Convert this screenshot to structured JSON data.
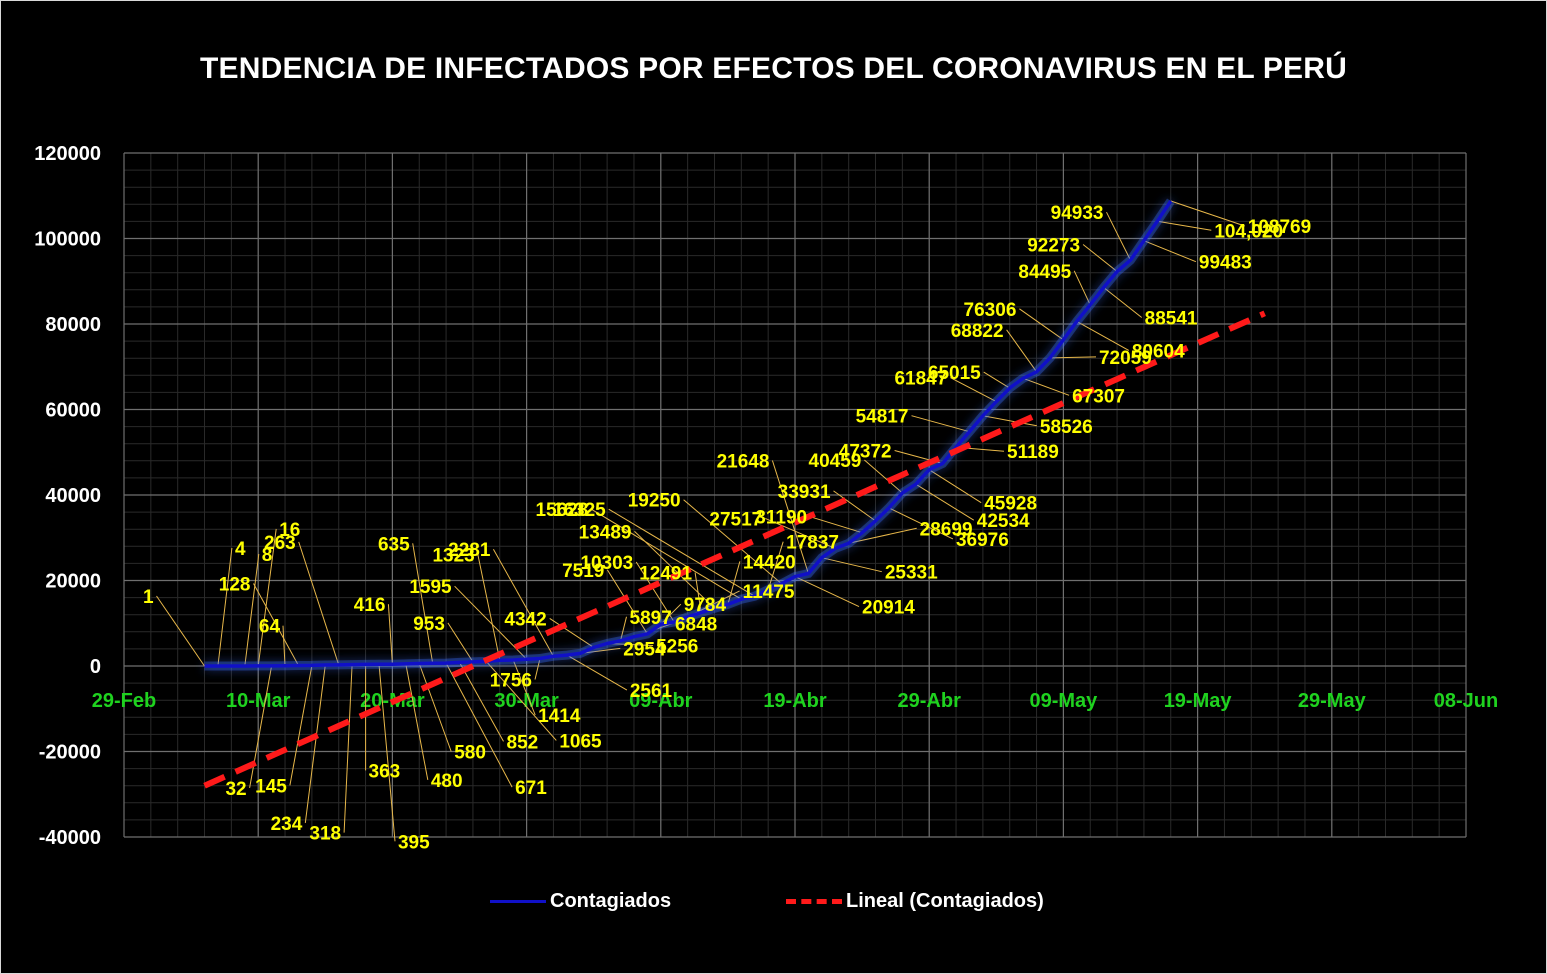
{
  "chart_data": {
    "type": "line",
    "title": "TENDENCIA DE INFECTADOS POR EFECTOS DEL CORONAVIRUS EN EL PERÚ",
    "xlabel": "",
    "ylabel": "",
    "x_axis": {
      "type": "date",
      "min": "2020-02-29",
      "max": "2020-06-08",
      "tick_labels": [
        "29-Feb",
        "10-Mar",
        "20-Mar",
        "30-Mar",
        "09-Abr",
        "19-Abr",
        "29-Abr",
        "09-May",
        "19-May",
        "29-May",
        "08-Jun"
      ]
    },
    "y_axis": {
      "min": -40000,
      "max": 120000,
      "tick_labels": [
        "-40000",
        "-20000",
        "0",
        "20000",
        "40000",
        "60000",
        "80000",
        "100000",
        "120000"
      ]
    },
    "grid": true,
    "legend_position": "bottom",
    "colors": {
      "background": "#000000",
      "grid": "#6f6f6f",
      "axis_text": "#ffffff",
      "date_text": "#1fd21f",
      "series": "#1010c8",
      "trend": "#ff1a1a",
      "labels": "#ffff00",
      "leader": "#e8b84a"
    },
    "series": [
      {
        "name": "Contagiados",
        "points": [
          [
            "2020-03-06",
            1
          ],
          [
            "2020-03-07",
            4
          ],
          [
            "2020-03-09",
            8
          ],
          [
            "2020-03-10",
            16
          ],
          [
            "2020-03-11",
            32
          ],
          [
            "2020-03-12",
            64
          ],
          [
            "2020-03-13",
            128
          ],
          [
            "2020-03-14",
            145
          ],
          [
            "2020-03-15",
            234
          ],
          [
            "2020-03-16",
            263
          ],
          [
            "2020-03-17",
            318
          ],
          [
            "2020-03-18",
            363
          ],
          [
            "2020-03-19",
            395
          ],
          [
            "2020-03-20",
            416
          ],
          [
            "2020-03-21",
            480
          ],
          [
            "2020-03-22",
            580
          ],
          [
            "2020-03-23",
            635
          ],
          [
            "2020-03-24",
            671
          ],
          [
            "2020-03-25",
            852
          ],
          [
            "2020-03-26",
            953
          ],
          [
            "2020-03-27",
            1065
          ],
          [
            "2020-03-28",
            1323
          ],
          [
            "2020-03-29",
            1414
          ],
          [
            "2020-03-30",
            1595
          ],
          [
            "2020-03-31",
            1756
          ],
          [
            "2020-04-01",
            2281
          ],
          [
            "2020-04-02",
            2561
          ],
          [
            "2020-04-03",
            2954
          ],
          [
            "2020-04-04",
            4342
          ],
          [
            "2020-04-05",
            5256
          ],
          [
            "2020-04-06",
            5897
          ],
          [
            "2020-04-07",
            6848
          ],
          [
            "2020-04-08",
            7519
          ],
          [
            "2020-04-09",
            9784
          ],
          [
            "2020-04-10",
            10303
          ],
          [
            "2020-04-11",
            11475
          ],
          [
            "2020-04-12",
            12491
          ],
          [
            "2020-04-13",
            13489
          ],
          [
            "2020-04-14",
            14420
          ],
          [
            "2020-04-15",
            15628
          ],
          [
            "2020-04-16",
            16325
          ],
          [
            "2020-04-17",
            17837
          ],
          [
            "2020-04-18",
            19250
          ],
          [
            "2020-04-19",
            20914
          ],
          [
            "2020-04-20",
            21648
          ],
          [
            "2020-04-21",
            25331
          ],
          [
            "2020-04-22",
            27517
          ],
          [
            "2020-04-23",
            28699
          ],
          [
            "2020-04-24",
            31190
          ],
          [
            "2020-04-25",
            33931
          ],
          [
            "2020-04-26",
            36976
          ],
          [
            "2020-04-27",
            40459
          ],
          [
            "2020-04-28",
            42534
          ],
          [
            "2020-04-29",
            45928
          ],
          [
            "2020-04-30",
            47372
          ],
          [
            "2020-05-01",
            51189
          ],
          [
            "2020-05-02",
            54817
          ],
          [
            "2020-05-03",
            58526
          ],
          [
            "2020-05-04",
            61847
          ],
          [
            "2020-05-05",
            65015
          ],
          [
            "2020-05-06",
            67307
          ],
          [
            "2020-05-07",
            68822
          ],
          [
            "2020-05-08",
            72059
          ],
          [
            "2020-05-09",
            76306
          ],
          [
            "2020-05-10",
            80604
          ],
          [
            "2020-05-11",
            84495
          ],
          [
            "2020-05-12",
            88541
          ],
          [
            "2020-05-13",
            92273
          ],
          [
            "2020-05-14",
            94933
          ],
          [
            "2020-05-15",
            99483
          ],
          [
            "2020-05-16",
            104020
          ],
          [
            "2020-05-17",
            108769
          ]
        ]
      }
    ],
    "trendline": {
      "name": "Lineal (Contagiados)",
      "type": "linear",
      "start": [
        "2020-03-06",
        -28000
      ],
      "end": [
        "2020-05-24",
        82500
      ]
    },
    "data_labels": [
      {
        "text": "1",
        "i": 0
      },
      {
        "text": "4",
        "i": 1
      },
      {
        "text": "8",
        "i": 2
      },
      {
        "text": "16",
        "i": 3
      },
      {
        "text": "32",
        "i": 4
      },
      {
        "text": "64",
        "i": 5
      },
      {
        "text": "128",
        "i": 6
      },
      {
        "text": "145",
        "i": 7
      },
      {
        "text": "234",
        "i": 8
      },
      {
        "text": "263",
        "i": 9
      },
      {
        "text": "318",
        "i": 10
      },
      {
        "text": "363",
        "i": 11
      },
      {
        "text": "395",
        "i": 12
      },
      {
        "text": "416",
        "i": 13
      },
      {
        "text": "480",
        "i": 14
      },
      {
        "text": "580",
        "i": 15
      },
      {
        "text": "635",
        "i": 16
      },
      {
        "text": "671",
        "i": 17
      },
      {
        "text": "852",
        "i": 18
      },
      {
        "text": "953",
        "i": 19
      },
      {
        "text": "1065",
        "i": 20
      },
      {
        "text": "1323",
        "i": 21
      },
      {
        "text": "1414",
        "i": 22
      },
      {
        "text": "1595",
        "i": 23
      },
      {
        "text": "1756",
        "i": 24
      },
      {
        "text": "2281",
        "i": 25
      },
      {
        "text": "2561",
        "i": 26
      },
      {
        "text": "2954",
        "i": 27
      },
      {
        "text": "4342",
        "i": 28
      },
      {
        "text": "5256",
        "i": 29
      },
      {
        "text": "5897",
        "i": 30
      },
      {
        "text": "6848",
        "i": 31
      },
      {
        "text": "7519",
        "i": 32
      },
      {
        "text": "9784",
        "i": 33
      },
      {
        "text": "10303",
        "i": 34
      },
      {
        "text": "11475",
        "i": 35
      },
      {
        "text": "12491",
        "i": 36
      },
      {
        "text": "13489",
        "i": 37
      },
      {
        "text": "14420",
        "i": 38
      },
      {
        "text": "15628",
        "i": 39
      },
      {
        "text": "16325",
        "i": 40
      },
      {
        "text": "17837",
        "i": 41
      },
      {
        "text": "19250",
        "i": 42
      },
      {
        "text": "20914",
        "i": 43
      },
      {
        "text": "21648",
        "i": 44
      },
      {
        "text": "25331",
        "i": 45
      },
      {
        "text": "27517",
        "i": 46
      },
      {
        "text": "28699",
        "i": 47
      },
      {
        "text": "31190",
        "i": 48
      },
      {
        "text": "33931",
        "i": 49
      },
      {
        "text": "36976",
        "i": 50
      },
      {
        "text": "40459",
        "i": 51
      },
      {
        "text": "42534",
        "i": 52
      },
      {
        "text": "45928",
        "i": 53
      },
      {
        "text": "47372",
        "i": 54
      },
      {
        "text": "51189",
        "i": 55
      },
      {
        "text": "54817",
        "i": 56
      },
      {
        "text": "58526",
        "i": 57
      },
      {
        "text": "61847",
        "i": 58
      },
      {
        "text": "65015",
        "i": 59
      },
      {
        "text": "67307",
        "i": 60
      },
      {
        "text": "68822",
        "i": 61
      },
      {
        "text": "72059",
        "i": 62
      },
      {
        "text": "76306",
        "i": 63
      },
      {
        "text": "80604",
        "i": 64
      },
      {
        "text": "84495",
        "i": 65
      },
      {
        "text": "88541",
        "i": 66
      },
      {
        "text": "92273",
        "i": 67
      },
      {
        "text": "94933",
        "i": 68
      },
      {
        "text": "99483",
        "i": 69
      },
      {
        "text": "104,020",
        "i": 70
      },
      {
        "text": "108769",
        "i": 71
      }
    ]
  },
  "legend": {
    "series_label": "Contagiados",
    "trend_label": "Lineal (Contagiados)"
  }
}
